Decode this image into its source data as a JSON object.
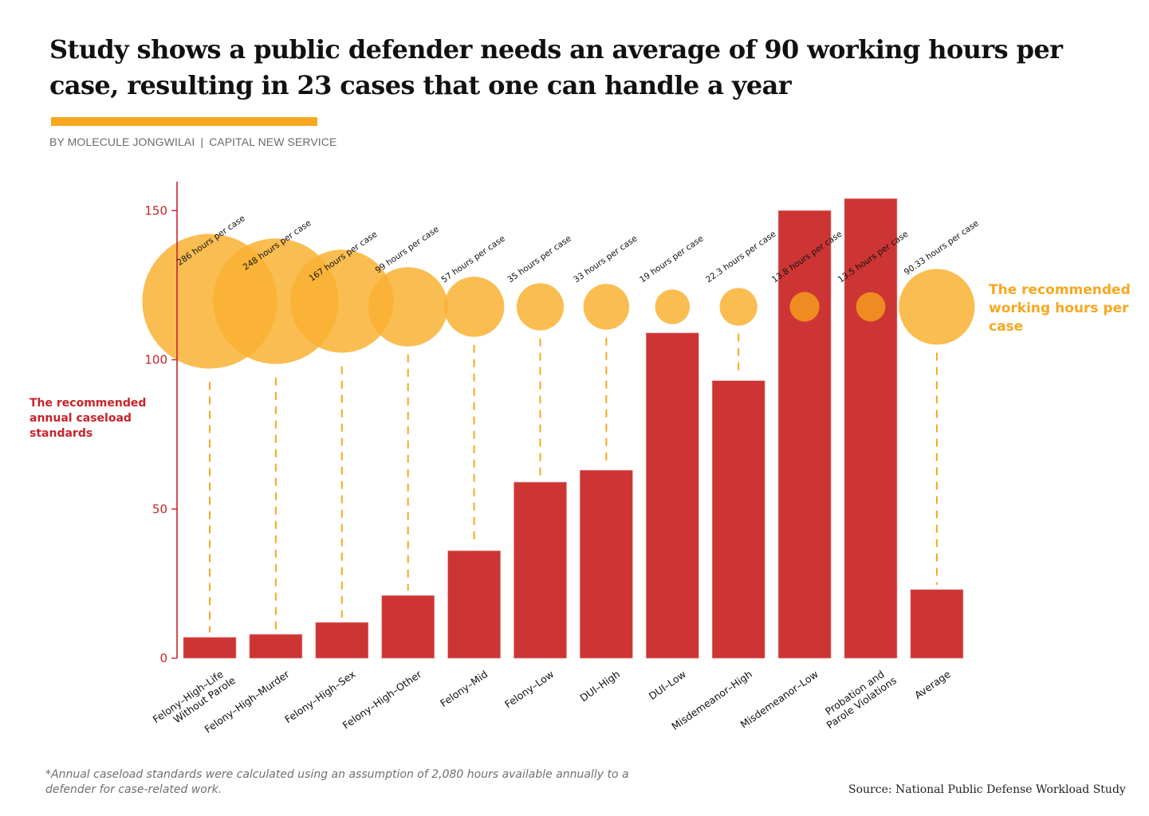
{
  "header": {
    "title": "Study shows a public defender needs an average of 90 working hours per case, resulting in 23 cases that one can handle a year",
    "byline_author": "BY MOLECULE JONGWILAI",
    "byline_separator": "|",
    "byline_outlet": "CAPITAL NEW SERVICE"
  },
  "annotations": {
    "left_label": "The recommended annual caseload standards",
    "right_label": "The recommended working hours per case",
    "footnote": "*Annual caseload standards were calculated using an assumption of 2,080 hours available annually to a defender for case-related work.",
    "source": "Source: National Public Defense Workload Study"
  },
  "colors": {
    "bar": "#cd3535",
    "axis": "#c8232a",
    "bubble": "#f9b233",
    "bubble_on_bar": "#ef8c21",
    "dash": "#f6a820",
    "accent": "#f6a820"
  },
  "chart_data": {
    "type": "bar",
    "title": "Study shows a public defender needs an average of 90 working hours per case, resulting in 23 cases that one can handle a year",
    "xlabel": "",
    "ylabel": "The recommended annual caseload standards",
    "ylim": [
      0,
      160
    ],
    "yticks": [
      0,
      50,
      100,
      150
    ],
    "grid": false,
    "categories": [
      [
        "Felony–High–Life",
        "Without Parole"
      ],
      [
        "Felony–High–Murder"
      ],
      [
        "Felony–High–Sex"
      ],
      [
        "Felony–High–Other"
      ],
      [
        "Felony–Mid"
      ],
      [
        "Felony–Low"
      ],
      [
        "DUI–High"
      ],
      [
        "DUI–Low"
      ],
      [
        "Misdemeanor–High"
      ],
      [
        "Misdemeanor–Low"
      ],
      [
        "Probation and",
        "Parole Violations"
      ],
      [
        "Average"
      ]
    ],
    "series": [
      {
        "name": "The recommended annual caseload standards",
        "type": "bar",
        "values": [
          7,
          8,
          12,
          21,
          36,
          59,
          63,
          109,
          93,
          150,
          154,
          23
        ]
      },
      {
        "name": "The recommended working hours per case",
        "type": "bubble",
        "values": [
          286,
          248,
          167,
          99,
          57,
          35,
          33,
          19,
          22.3,
          13.8,
          13.5,
          90.33
        ],
        "labels": [
          "286 hours per case",
          "248 hours per case",
          "167 hours per case",
          "99 hours per case",
          "57 hours per case",
          "35 hours per case",
          "33 hours per case",
          "19 hours per case",
          "22.3 hours per case",
          "13.8 hours per case",
          "13.5 hours per case",
          "90.33 hours per case"
        ]
      }
    ]
  }
}
